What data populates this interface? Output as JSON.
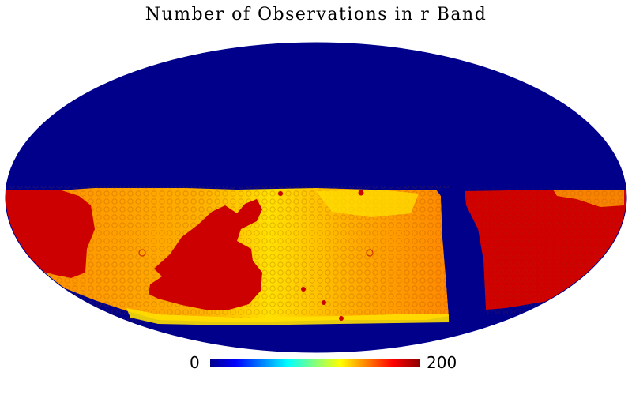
{
  "title": "Number of Observations in r Band",
  "projection": "mollweide",
  "colormap": {
    "name": "jet",
    "min_label": "0",
    "max_label": "200",
    "min": 0,
    "max": 200,
    "stops": [
      "#00008b",
      "#0000ff",
      "#00ffff",
      "#ffff00",
      "#ff0000",
      "#8b0000"
    ]
  },
  "colors": {
    "empty_sky": "#00008b",
    "typical_coverage": "#ff9a00",
    "high_coverage": "#cc0000",
    "low_coverage": "#ffe000"
  }
}
